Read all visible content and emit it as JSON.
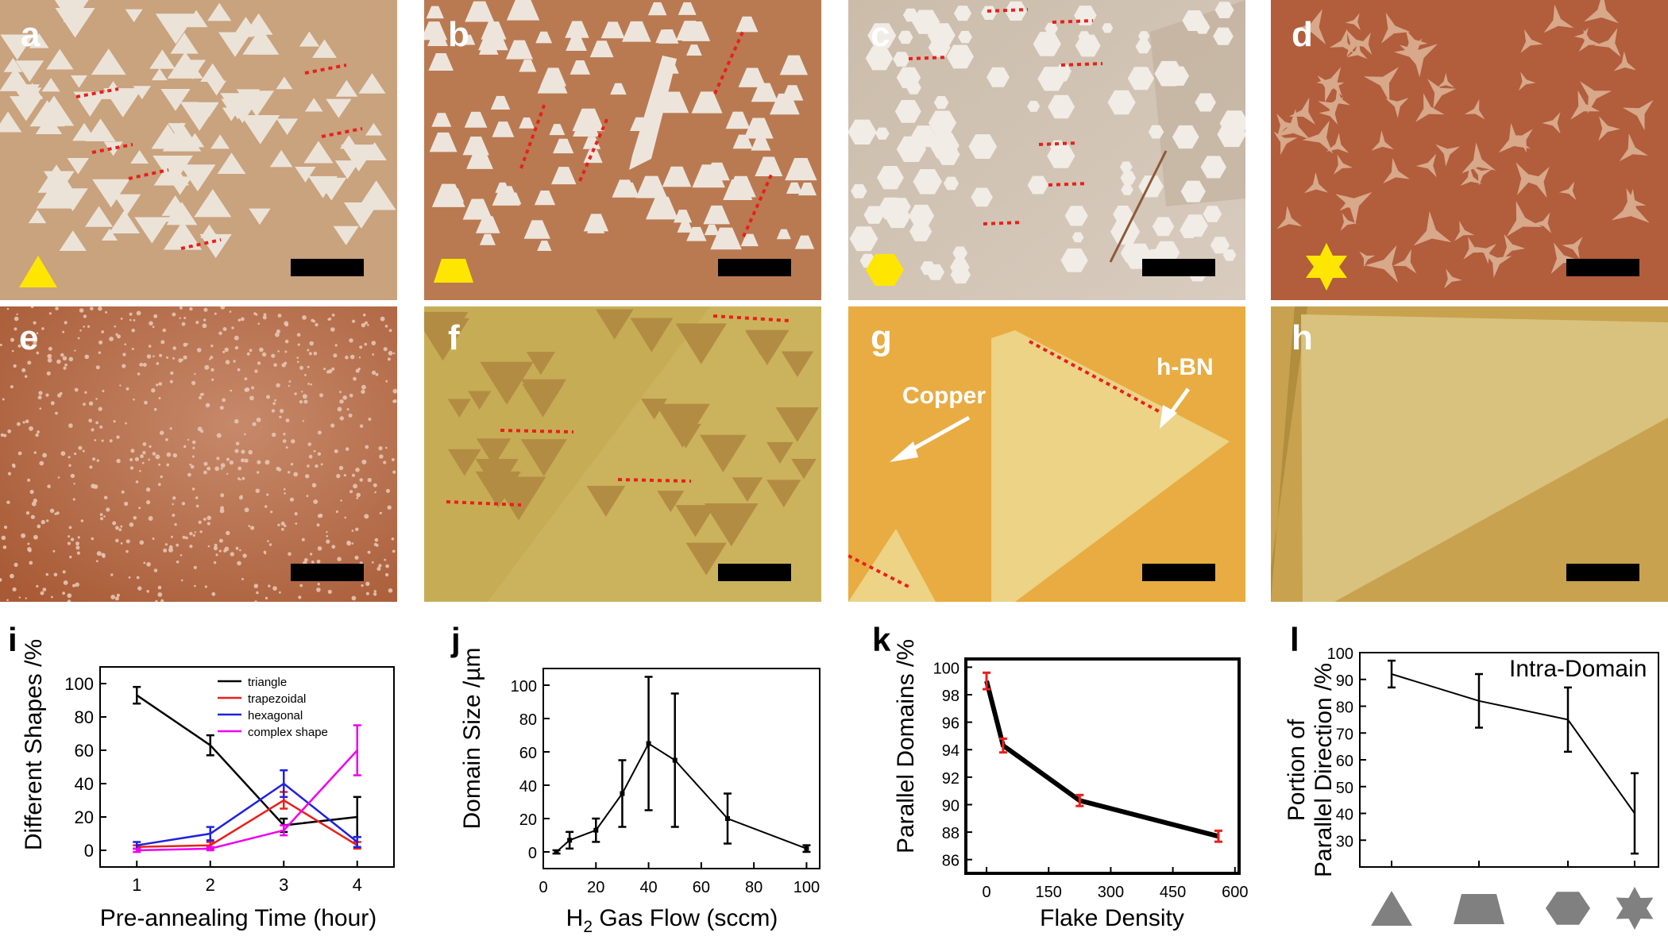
{
  "panel_labels": {
    "a": "a",
    "b": "b",
    "c": "c",
    "d": "d",
    "e": "e",
    "f": "f",
    "g": "g",
    "h": "h",
    "i": "i",
    "j": "j",
    "k": "k",
    "l": "l"
  },
  "annotations": {
    "copper": "Copper",
    "hbn": "h-BN",
    "intra_domain": "Intra-Domain"
  },
  "colors": {
    "copper_dark": "#b26a44",
    "copper_light": "#c9a27e",
    "yellow_bg": "#c8a94e",
    "gold_bg": "#e8b045",
    "marker": "#ffe600",
    "dash": "#e8201b",
    "scalebar": "#000000",
    "grey_shape": "#808080"
  },
  "icons": {
    "a": "triangle-icon",
    "b": "trapezoid-icon",
    "c": "hexagon-icon",
    "d": "star-icon",
    "l": [
      "triangle-icon",
      "trapezoid-icon",
      "hexagon-icon",
      "star-icon"
    ]
  },
  "chart_data": [
    {
      "panel": "i",
      "type": "line",
      "xlabel": "Pre-annealing Time (hour)",
      "ylabel": "Different Shapes /%",
      "xlim": [
        0.5,
        4.5
      ],
      "ylim": [
        -10,
        110
      ],
      "xticks": [
        1,
        2,
        3,
        4
      ],
      "yticks": [
        0,
        20,
        40,
        60,
        80,
        100
      ],
      "x": [
        1,
        2,
        3,
        4
      ],
      "series": [
        {
          "name": "triangle",
          "color": "#000000",
          "values": [
            93,
            63,
            15,
            20
          ],
          "err": [
            5,
            6,
            4,
            12
          ]
        },
        {
          "name": "trapezoidal",
          "color": "#e8201b",
          "values": [
            2,
            3,
            30,
            3
          ],
          "err": [
            1,
            2,
            5,
            2
          ]
        },
        {
          "name": "hexagonal",
          "color": "#2020e0",
          "values": [
            3,
            10,
            40,
            5
          ],
          "err": [
            2,
            4,
            8,
            3
          ]
        },
        {
          "name": "complex shape",
          "color": "#ee00ee",
          "values": [
            0,
            1,
            12,
            60
          ],
          "err": [
            1,
            1,
            3,
            15
          ]
        }
      ],
      "legend": "top-right"
    },
    {
      "panel": "j",
      "type": "line",
      "xlabel_main": "H",
      "xlabel_sub": "2",
      "xlabel_rest": " Gas Flow (sccm)",
      "ylabel": "Domain Size /µm",
      "xlim": [
        0,
        105
      ],
      "ylim": [
        -10,
        110
      ],
      "xticks": [
        0,
        20,
        40,
        60,
        80,
        100
      ],
      "yticks": [
        0,
        20,
        40,
        60,
        80,
        100
      ],
      "x": [
        5,
        10,
        20,
        30,
        40,
        50,
        70,
        100
      ],
      "values": [
        0,
        7,
        13,
        35,
        65,
        55,
        20,
        2
      ],
      "err": [
        1,
        5,
        7,
        20,
        40,
        40,
        15,
        2
      ]
    },
    {
      "panel": "k",
      "type": "line",
      "xlabel": "Flake Density",
      "ylabel": "Parallel Domains /%",
      "xlim": [
        -50,
        610
      ],
      "ylim": [
        85,
        100.6
      ],
      "xticks": [
        0,
        150,
        300,
        450,
        600
      ],
      "yticks": [
        86,
        88,
        90,
        92,
        94,
        96,
        98,
        100
      ],
      "x": [
        0,
        40,
        225,
        560
      ],
      "values": [
        99,
        94.3,
        90.3,
        87.7
      ],
      "err": [
        0.6,
        0.5,
        0.4,
        0.4
      ]
    },
    {
      "panel": "l",
      "type": "line",
      "ylabel_line1": "Portion of",
      "ylabel_line2": "Parallel Direction /%",
      "title": "Intra-Domain",
      "ylim": [
        20,
        100
      ],
      "yticks": [
        20,
        30,
        40,
        50,
        60,
        70,
        80,
        90,
        100
      ],
      "ytick_labels": [
        "",
        "30",
        "40",
        "50",
        "60",
        "70",
        "80",
        "90",
        "100"
      ],
      "categories": [
        "triangle",
        "trapezoidal",
        "hexagonal",
        "complex shape"
      ],
      "values": [
        92,
        82,
        75,
        40
      ],
      "err": [
        5,
        10,
        12,
        15
      ]
    }
  ]
}
